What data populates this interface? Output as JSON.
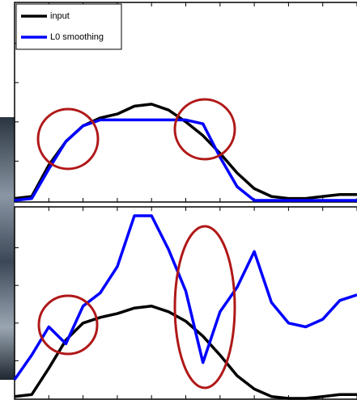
{
  "chart_data": [
    {
      "type": "line",
      "x": [
        0,
        1,
        2,
        3,
        4,
        5,
        6,
        7,
        8,
        9,
        10,
        11,
        12,
        13,
        14,
        15,
        16,
        17,
        18,
        19,
        20
      ],
      "xlim": [
        0,
        20
      ],
      "ylim": [
        0,
        1
      ],
      "xticks": [
        2,
        4,
        6,
        8,
        10,
        12,
        14,
        16,
        18,
        20
      ],
      "yticks": [
        0.2,
        0.4,
        0.6,
        0.8
      ],
      "legend": "upper left",
      "series": [
        {
          "name": "input",
          "color": "#000000",
          "values": [
            0.01,
            0.02,
            0.18,
            0.3,
            0.38,
            0.42,
            0.44,
            0.48,
            0.49,
            0.46,
            0.4,
            0.33,
            0.24,
            0.14,
            0.06,
            0.02,
            0.01,
            0.01,
            0.02,
            0.03,
            0.03
          ]
        },
        {
          "name": "L0 smoothing",
          "color": "#0000ff",
          "values": [
            0,
            0.01,
            0.16,
            0.3,
            0.38,
            0.41,
            0.41,
            0.41,
            0.41,
            0.41,
            0.41,
            0.39,
            0.22,
            0.07,
            0,
            0,
            0,
            0,
            0,
            0,
            0
          ]
        }
      ]
    },
    {
      "type": "line",
      "x": [
        0,
        1,
        2,
        3,
        4,
        5,
        6,
        7,
        8,
        9,
        10,
        11,
        12,
        13,
        14,
        15,
        16,
        17,
        18,
        19,
        20
      ],
      "xlim": [
        0,
        20
      ],
      "ylim": [
        0,
        1
      ],
      "xticks": [
        2,
        4,
        6,
        8,
        10,
        12,
        14,
        16,
        18,
        20
      ],
      "yticks": [
        0.2,
        0.4,
        0.6,
        0.8
      ],
      "series": [
        {
          "color": "#000000",
          "values": [
            0.01,
            0.02,
            0.16,
            0.31,
            0.4,
            0.43,
            0.45,
            0.48,
            0.49,
            0.46,
            0.41,
            0.33,
            0.23,
            0.12,
            0.05,
            0.01,
            0,
            0,
            0.01,
            0.02,
            0.02
          ]
        },
        {
          "color": "#0000ff",
          "values": [
            0.1,
            0.23,
            0.38,
            0.29,
            0.49,
            0.56,
            0.7,
            0.97,
            0.97,
            0.79,
            0.57,
            0.19,
            0.46,
            0.59,
            0.78,
            0.51,
            0.4,
            0.38,
            0.42,
            0.52,
            0.55
          ]
        }
      ]
    }
  ]
}
